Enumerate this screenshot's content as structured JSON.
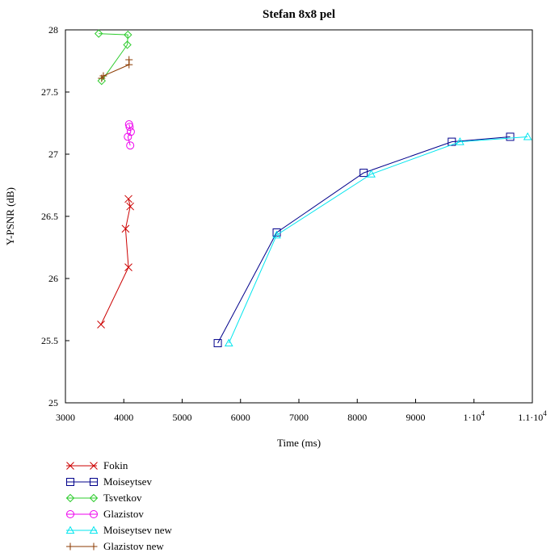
{
  "chart_data": {
    "type": "line",
    "title": "Stefan 8x8 pel",
    "xlabel": "Time (ms)",
    "ylabel": "Y-PSNR (dB)",
    "xlim": [
      3000,
      11000
    ],
    "ylim": [
      25,
      28
    ],
    "x_ticks": [
      {
        "value": 3000,
        "label": "3000"
      },
      {
        "value": 4000,
        "label": "4000"
      },
      {
        "value": 5000,
        "label": "5000"
      },
      {
        "value": 6000,
        "label": "6000"
      },
      {
        "value": 7000,
        "label": "7000"
      },
      {
        "value": 8000,
        "label": "8000"
      },
      {
        "value": 9000,
        "label": "9000"
      },
      {
        "value": 10000,
        "label": "1·10",
        "exp": "4"
      },
      {
        "value": 11000,
        "label": "1.1·10",
        "exp": "4"
      }
    ],
    "y_ticks": [
      {
        "value": 25,
        "label": "25"
      },
      {
        "value": 25.5,
        "label": "25.5"
      },
      {
        "value": 26,
        "label": "26"
      },
      {
        "value": 26.5,
        "label": "26.5"
      },
      {
        "value": 27,
        "label": "27"
      },
      {
        "value": 27.5,
        "label": "27.5"
      },
      {
        "value": 28,
        "label": "28"
      }
    ],
    "grid": false,
    "legend_position": "bottom-left",
    "series": [
      {
        "name": "Fokin",
        "color": "#cc0000",
        "marker": "x",
        "x": [
          3610,
          4080,
          4030,
          4110,
          4080
        ],
        "y": [
          25.63,
          26.09,
          26.4,
          26.58,
          26.64
        ]
      },
      {
        "name": "Moiseytsev",
        "color": "#00008b",
        "marker": "square",
        "x": [
          5610,
          6620,
          8110,
          9620,
          10620
        ],
        "y": [
          25.48,
          26.37,
          26.85,
          27.1,
          27.14
        ]
      },
      {
        "name": "Tsvetkov",
        "color": "#2ecc2e",
        "marker": "diamond",
        "x": [
          3620,
          4060,
          4070,
          3570
        ],
        "y": [
          27.59,
          27.88,
          27.96,
          27.97
        ]
      },
      {
        "name": "Glazistov",
        "color": "#ee00ee",
        "marker": "circle",
        "x": [
          4110,
          4070,
          4120,
          4100,
          4090
        ],
        "y": [
          27.07,
          27.14,
          27.18,
          27.22,
          27.24
        ]
      },
      {
        "name": "Moiseytsev new",
        "color": "#00e5ee",
        "marker": "triangle",
        "x": [
          5800,
          6620,
          8240,
          9760,
          10920
        ],
        "y": [
          25.48,
          26.35,
          26.84,
          27.1,
          27.14
        ]
      },
      {
        "name": "Glazistov new",
        "color": "#8b3a00",
        "marker": "plus",
        "x": [
          3620,
          3650,
          4090,
          4090
        ],
        "y": [
          27.61,
          27.63,
          27.72,
          27.76
        ]
      }
    ]
  }
}
